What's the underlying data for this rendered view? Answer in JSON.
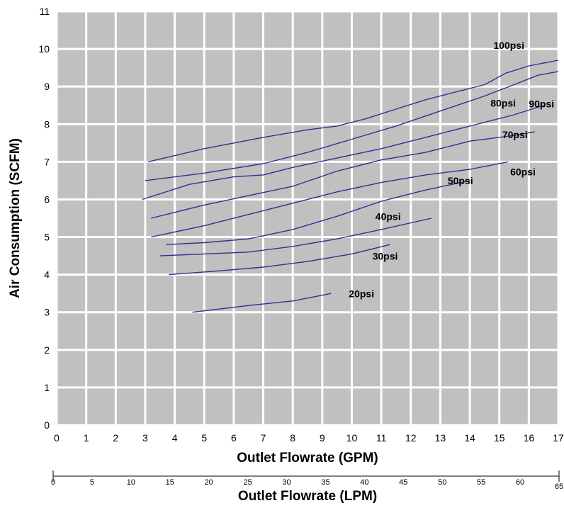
{
  "chart_data": {
    "type": "line",
    "xlabel": "Outlet Flowrate (GPM)",
    "ylabel": "Air Consumption (SCFM)",
    "secondary_xlabel": "Outlet Flowrate (LPM)",
    "xlim": [
      0,
      17
    ],
    "ylim": [
      0,
      11
    ],
    "x_ticks": [
      "0",
      "1",
      "2",
      "3",
      "4",
      "5",
      "6",
      "7",
      "8",
      "9",
      "10",
      "11",
      "12",
      "13",
      "14",
      "15",
      "16",
      "17"
    ],
    "y_ticks": [
      "0",
      "1",
      "2",
      "3",
      "4",
      "5",
      "6",
      "7",
      "8",
      "9",
      "10",
      "11"
    ],
    "secondary_x_ticks": [
      {
        "label": "0",
        "value": 0
      },
      {
        "label": "5",
        "value": 5
      },
      {
        "label": "10",
        "value": 10
      },
      {
        "label": "15",
        "value": 15
      },
      {
        "label": "20",
        "value": 20
      },
      {
        "label": "25",
        "value": 25
      },
      {
        "label": "30",
        "value": 30
      },
      {
        "label": "35",
        "value": 35
      },
      {
        "label": "40",
        "value": 40
      },
      {
        "label": "45",
        "value": 45
      },
      {
        "label": "50",
        "value": 50
      },
      {
        "label": "55",
        "value": 55
      },
      {
        "label": "60",
        "value": 60
      },
      {
        "label": "65",
        "value": 65
      }
    ],
    "grid": true,
    "colors": {
      "plot_bg": "#c0c0c0",
      "grid": "#ffffff",
      "line": "#2e3192"
    },
    "series": [
      {
        "name": "20psi",
        "points": [
          [
            4.6,
            3.0
          ],
          [
            6.5,
            3.18
          ],
          [
            8.0,
            3.3
          ],
          [
            9.3,
            3.5
          ]
        ]
      },
      {
        "name": "30psi",
        "points": [
          [
            3.8,
            4.0
          ],
          [
            5.5,
            4.1
          ],
          [
            7.0,
            4.2
          ],
          [
            8.5,
            4.35
          ],
          [
            10.0,
            4.55
          ],
          [
            11.3,
            4.8
          ]
        ]
      },
      {
        "name": "40psi",
        "points": [
          [
            3.5,
            4.5
          ],
          [
            5.0,
            4.55
          ],
          [
            6.5,
            4.6
          ],
          [
            8.0,
            4.75
          ],
          [
            9.5,
            4.95
          ],
          [
            11.0,
            5.2
          ],
          [
            12.7,
            5.5
          ]
        ]
      },
      {
        "name": "50psi",
        "points": [
          [
            3.7,
            4.8
          ],
          [
            5.0,
            4.85
          ],
          [
            6.5,
            4.95
          ],
          [
            8.0,
            5.2
          ],
          [
            9.5,
            5.55
          ],
          [
            11.0,
            5.95
          ],
          [
            12.5,
            6.25
          ],
          [
            14.0,
            6.5
          ]
        ]
      },
      {
        "name": "60psi",
        "points": [
          [
            3.2,
            5.0
          ],
          [
            5.0,
            5.3
          ],
          [
            6.5,
            5.6
          ],
          [
            8.0,
            5.9
          ],
          [
            9.5,
            6.2
          ],
          [
            11.0,
            6.45
          ],
          [
            12.5,
            6.65
          ],
          [
            14.0,
            6.8
          ],
          [
            15.3,
            7.0
          ]
        ]
      },
      {
        "name": "70psi",
        "points": [
          [
            3.2,
            5.5
          ],
          [
            5.0,
            5.85
          ],
          [
            6.5,
            6.1
          ],
          [
            8.0,
            6.35
          ],
          [
            9.5,
            6.75
          ],
          [
            11.0,
            7.05
          ],
          [
            12.5,
            7.25
          ],
          [
            13.0,
            7.35
          ],
          [
            14.0,
            7.55
          ],
          [
            15.5,
            7.7
          ],
          [
            16.2,
            7.8
          ]
        ]
      },
      {
        "name": "80psi",
        "points": [
          [
            2.9,
            6.0
          ],
          [
            4.5,
            6.4
          ],
          [
            6.0,
            6.6
          ],
          [
            7.0,
            6.65
          ],
          [
            8.0,
            6.85
          ],
          [
            9.5,
            7.1
          ],
          [
            11.0,
            7.35
          ],
          [
            12.5,
            7.65
          ],
          [
            14.0,
            7.95
          ],
          [
            15.5,
            8.25
          ],
          [
            16.5,
            8.5
          ]
        ]
      },
      {
        "name": "90psi",
        "points": [
          [
            3.0,
            6.5
          ],
          [
            5.0,
            6.7
          ],
          [
            7.0,
            6.95
          ],
          [
            8.5,
            7.25
          ],
          [
            10.0,
            7.6
          ],
          [
            11.5,
            7.95
          ],
          [
            13.0,
            8.35
          ],
          [
            14.5,
            8.75
          ],
          [
            15.5,
            9.05
          ],
          [
            16.3,
            9.3
          ],
          [
            17.0,
            9.4
          ]
        ]
      },
      {
        "name": "100psi",
        "points": [
          [
            3.1,
            7.0
          ],
          [
            5.0,
            7.35
          ],
          [
            7.0,
            7.65
          ],
          [
            8.5,
            7.85
          ],
          [
            9.5,
            7.95
          ],
          [
            10.5,
            8.15
          ],
          [
            11.5,
            8.4
          ],
          [
            12.5,
            8.65
          ],
          [
            13.5,
            8.85
          ],
          [
            14.5,
            9.05
          ],
          [
            15.2,
            9.35
          ],
          [
            16.0,
            9.55
          ],
          [
            17.0,
            9.7
          ]
        ]
      }
    ]
  }
}
